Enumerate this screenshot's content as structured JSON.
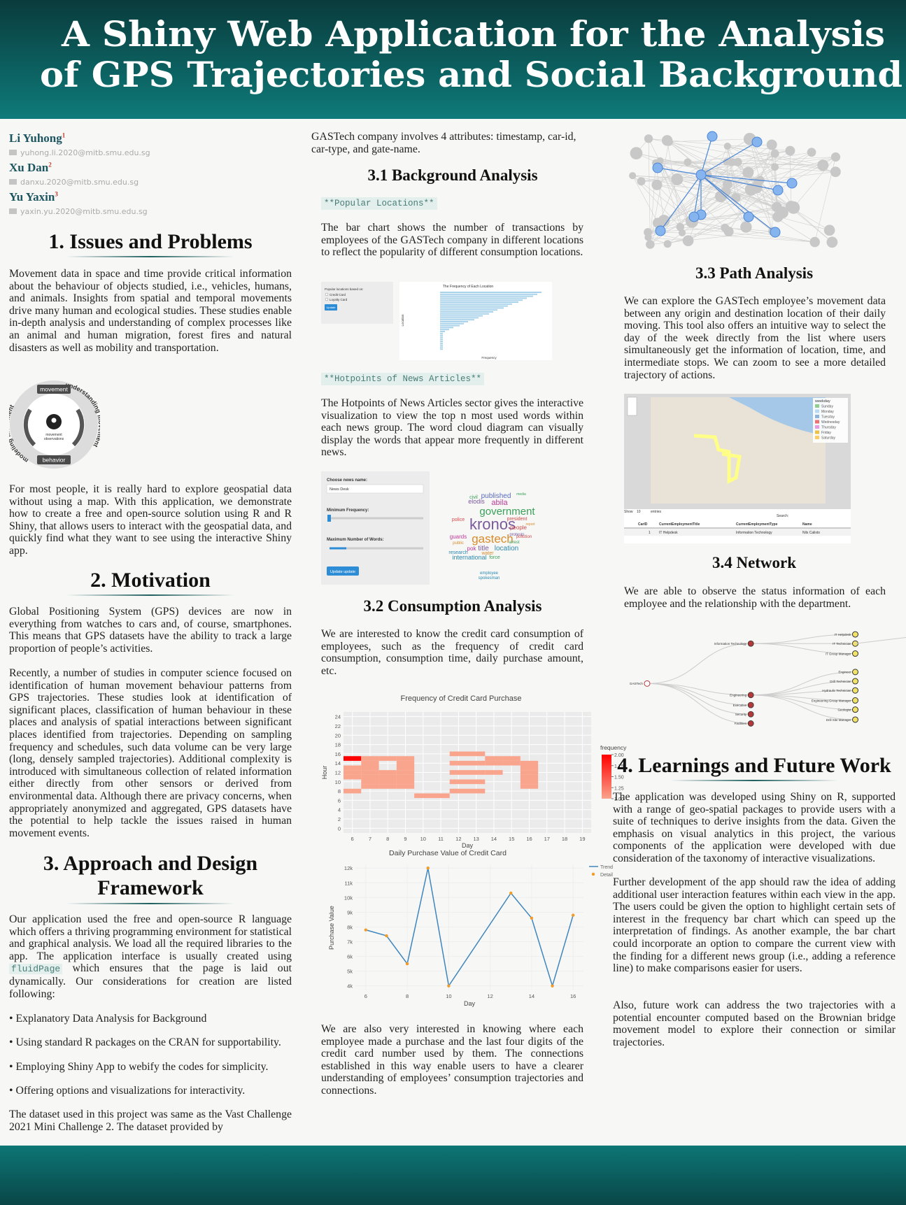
{
  "header": {
    "title_lines": [
      "A Shiny Web Application for the Analysis",
      "of GPS Trajectories and Social Background"
    ]
  },
  "authors": [
    {
      "name": "Li Yuhong",
      "affiliation": "1",
      "email": "yuhong.li.2020@mitb.smu.edu.sg"
    },
    {
      "name": "Xu Dan",
      "affiliation": "2",
      "email": "danxu.2020@mitb.smu.edu.sg"
    },
    {
      "name": "Yu Yaxin",
      "affiliation": "3",
      "email": "yaxin.yu.2020@mitb.smu.edu.sg"
    }
  ],
  "issues": {
    "heading": "1. Issues and Problems",
    "paragraphs": [
      "Movement data in space and time provide critical information about the behaviour of objects studied, i.e., vehicles, humans, and animals. Insights from spatial and temporal movements drive many human and ecological studies. These studies enable in-depth analysis and understanding of complex processes like an animal and human migration, forest fires and natural disasters as well as mobility and transportation.",
      "For most people, it is really hard to explore geospatial data without using a map. With this application, we demonstrate how to create a free and open-source solution using R and R Shiny, that allows users to interact with the geospatial data, and quickly find what they want to see using the interactive Shiny app."
    ]
  },
  "cycle_diagram": {
    "top": "movement",
    "bottom": "behavior",
    "right": "understanding movement",
    "left": "modeling movement",
    "center_lines": [
      "movement",
      "observations"
    ]
  },
  "motivation": {
    "heading": "2. Motivation",
    "paragraphs": [
      "Global Positioning System (GPS) devices are now in everything from watches to cars and, of course, smartphones. This means that GPS datasets have the ability to track a large proportion of people’s activities.",
      "Recently, a number of studies in computer science focused on identification of human movement behaviour patterns from GPS trajectories. These studies look at identification of significant places, classification of human behaviour in these places and analysis of spatial interactions between significant places identified from trajectories. Depending on sampling frequency and schedules, such data volume can be very large (long, densely sampled trajectories). Additional complexity is introduced with simultaneous collection of related information either directly from other sensors or derived from environmental data. Although there are privacy concerns, when appropriately anonymized and aggregated, GPS datasets have the potential to help tackle the issues raised in human movement events."
    ]
  },
  "approach": {
    "heading": "3. Approach and Design Framework",
    "intro": [
      "Our application used the free and open-source R language which offers a thriving programming environment for statistical and graphical analysis. We load all the required libraries to the app. The application interface is usually created using ",
      "fluidPage",
      " which ensures that the page is laid out dynamically. Our considerations for creation are listed following:"
    ],
    "bullets": [
      "• Explanatory Data Analysis for Background",
      "• Using standard R packages on the CRAN for supportability.",
      "• Employing Shiny App to webify the codes for simplicity.",
      "• Offering options and visualizations for interactivity."
    ],
    "dataset": "The dataset used in this project was same as the Vast Challenge 2021 Mini Challenge 2. The dataset provided by"
  },
  "continuation": "GASTech company involves 4 attributes: timestamp, car-id, car-type, and gate-name.",
  "background": {
    "heading": "3.1 Background Analysis",
    "popular_tag": "**Popular Locations**",
    "popular_text": "The bar chart shows the number of transactions by employees of the GASTech company in different locations to reflect the popularity of different consumption locations.",
    "popular_app": {
      "title": "The Frequency of Each Location",
      "control": "Popular locations based on:",
      "options": [
        "Credit Card",
        "Loyalty Card"
      ],
      "button": "Update",
      "y_label": "Location",
      "x_label": "Frequency"
    },
    "hotpoints_tag": "**Hotpoints of News Articles**",
    "hotpoints_text": "The Hotpoints of News Articles sector gives the interactive visualization to view the top n most used words within each news group. The word cloud diagram can visually display the words that appear more frequently in different news.",
    "news_app": {
      "choose": "Choose news name:",
      "selected": "News Desk",
      "min_freq": "Minimum Frequency:",
      "max_words": "Maximum Number of Words:",
      "button": "Update update",
      "words": [
        "kronos",
        "gastech",
        "government",
        "abila",
        "published",
        "people",
        "title",
        "location",
        "international",
        "president",
        "pok",
        "force",
        "police",
        "pollution",
        "arrest",
        "protests",
        "elodis",
        "civil",
        "water",
        "research",
        "employee",
        "spokesman",
        "guards",
        "public",
        "report",
        "media"
      ]
    }
  },
  "consumption": {
    "heading": "3.2 Consumption Analysis",
    "text1": "We are interested to know the credit card consumption of employees, such as the frequency of credit card consumption, consumption time, daily purchase amount, etc.",
    "text2": "We are also very interested in knowing where each employee made a purchase and the last four digits of the credit card number used by them. The connections established in this way enable users to have a clearer understanding of employees’ consumption trajectories and connections."
  },
  "path": {
    "heading": "3.3 Path Analysis",
    "text": "We can explore the GASTech employee’s movement data between any origin and destination location of their daily moving. This tool also offers an intuitive way to select the day of the week directly from the list where users simultaneously get the information of location, time, and intermediate stops. We can zoom to see a more detailed trajectory of actions.",
    "map_app": {
      "legend_title": "weekday",
      "weekdays": [
        "Sunday",
        "Monday",
        "Tuesday",
        "Wednesday",
        "Thursday",
        "Friday",
        "Saturday"
      ],
      "show": "Show",
      "entries_count": "10",
      "entries": "entries",
      "search": "Search:",
      "columns": [
        "CarID",
        "CurrentEmploymentTitle",
        "CurrentEmploymentType",
        "Name"
      ],
      "row": [
        "1",
        "IT Helpdesk",
        "Information Technology",
        "Nils Calixto"
      ]
    }
  },
  "network": {
    "heading": "3.4 Network",
    "text": "We are able to observe the status information of each employee and the relationship with the department.",
    "tree": {
      "root": "GASTech",
      "departments": [
        {
          "name": "Information Technology",
          "titles": [
            "IT Helpdesk",
            "IT Technician",
            "IT Group Manager"
          ]
        },
        {
          "name": "Engineering",
          "titles": [
            "Engineer",
            "Drill Technician",
            "Hydraulic Technician",
            "Engineering Group Manager",
            "Geologist",
            "Drill Site Manager"
          ]
        },
        {
          "name": "Executive",
          "titles": []
        },
        {
          "name": "Security",
          "titles": []
        },
        {
          "name": "Facilities",
          "titles": []
        }
      ]
    }
  },
  "learnings": {
    "heading": "4. Learnings and Future Work",
    "paragraphs": [
      "The application was developed using Shiny on R, supported with a range of geo-spatial packages to provide users with a suite of techniques to derive insights from the data. Given the emphasis on visual analytics in this project, the various components of the application were developed with due consideration of the taxonomy of interactive visualizations.",
      "Further development of the app should raw the idea of adding additional user interaction features within each view in the app. The users could be given the option to highlight certain sets of interest in the frequency bar chart which can speed up the interpretation of findings. As another example, the bar chart could incorporate an option to compare the current view with the finding for a different news group (i.e., adding a reference line) to make comparisons easier for users.",
      "Also, future work can address the two trajectories with a potential encounter computed based on the Brownian bridge movement model to explore their connection or similar trajectories."
    ]
  },
  "chart_data": [
    {
      "type": "heatmap",
      "title": "Frequency of Credit Card Purchase",
      "x_label": "Day",
      "y_label": "Hour",
      "xlim": [
        5.5,
        19.5
      ],
      "xticks": [
        6,
        7,
        8,
        9,
        10,
        11,
        12,
        13,
        14,
        15,
        16,
        17,
        18,
        19
      ],
      "ylim": [
        -1,
        25
      ],
      "yticks": [
        0,
        2,
        4,
        6,
        8,
        10,
        12,
        14,
        16,
        18,
        20,
        22,
        24
      ],
      "colorbar_title": "frequency",
      "clim": [
        1,
        2
      ],
      "low_color": "#f9a48c",
      "high_color": "#ff0000",
      "cticks": [
        {
          "value": 2,
          "label": "2.00"
        },
        {
          "value": 1.75,
          "label": "1.75"
        },
        {
          "value": 1.5,
          "label": "1.50"
        },
        {
          "value": 1.25,
          "label": "1.25"
        },
        {
          "value": 1,
          "label": "1.00"
        }
      ],
      "cells": [
        {
          "x": 12,
          "y": 16,
          "value": 1
        },
        {
          "x": 13,
          "y": 16,
          "value": 1
        },
        {
          "x": 6,
          "y": 15,
          "value": 2
        },
        {
          "x": 7,
          "y": 15,
          "value": 1
        },
        {
          "x": 8,
          "y": 15,
          "value": 1
        },
        {
          "x": 9,
          "y": 15,
          "value": 1
        },
        {
          "x": 14,
          "y": 15,
          "value": 1
        },
        {
          "x": 15,
          "y": 15,
          "value": 1
        },
        {
          "x": 7,
          "y": 14,
          "value": 1
        },
        {
          "x": 9,
          "y": 14,
          "value": 1
        },
        {
          "x": 12,
          "y": 14,
          "value": 1
        },
        {
          "x": 13,
          "y": 14,
          "value": 1
        },
        {
          "x": 14,
          "y": 14,
          "value": 1
        },
        {
          "x": 15,
          "y": 14,
          "value": 1
        },
        {
          "x": 16,
          "y": 14,
          "value": 1
        },
        {
          "x": 6,
          "y": 13,
          "value": 1
        },
        {
          "x": 7,
          "y": 13,
          "value": 1
        },
        {
          "x": 9,
          "y": 13,
          "value": 1
        },
        {
          "x": 16,
          "y": 13,
          "value": 1
        },
        {
          "x": 6,
          "y": 12,
          "value": 1
        },
        {
          "x": 7,
          "y": 12,
          "value": 1
        },
        {
          "x": 8,
          "y": 12,
          "value": 1
        },
        {
          "x": 9,
          "y": 12,
          "value": 1
        },
        {
          "x": 12,
          "y": 12,
          "value": 1
        },
        {
          "x": 13,
          "y": 12,
          "value": 1
        },
        {
          "x": 14,
          "y": 12,
          "value": 1
        },
        {
          "x": 16,
          "y": 12,
          "value": 1
        },
        {
          "x": 6,
          "y": 11,
          "value": 1
        },
        {
          "x": 7,
          "y": 11,
          "value": 1
        },
        {
          "x": 8,
          "y": 11,
          "value": 1
        },
        {
          "x": 9,
          "y": 11,
          "value": 1
        },
        {
          "x": 16,
          "y": 11,
          "value": 1
        },
        {
          "x": 7,
          "y": 10,
          "value": 1
        },
        {
          "x": 8,
          "y": 10,
          "value": 1
        },
        {
          "x": 9,
          "y": 10,
          "value": 1
        },
        {
          "x": 12,
          "y": 10,
          "value": 1
        },
        {
          "x": 13,
          "y": 10,
          "value": 1
        },
        {
          "x": 16,
          "y": 10,
          "value": 1
        },
        {
          "x": 7,
          "y": 9,
          "value": 1
        },
        {
          "x": 8,
          "y": 9,
          "value": 1
        },
        {
          "x": 9,
          "y": 9,
          "value": 1
        },
        {
          "x": 16,
          "y": 9,
          "value": 1
        },
        {
          "x": 6,
          "y": 8,
          "value": 1
        },
        {
          "x": 12,
          "y": 8,
          "value": 1
        },
        {
          "x": 13,
          "y": 8,
          "value": 1
        },
        {
          "x": 10,
          "y": 7,
          "value": 1
        },
        {
          "x": 11,
          "y": 7,
          "value": 1
        }
      ]
    },
    {
      "type": "line",
      "title": "Daily Purchase Value of Credit Card",
      "x_label": "Day",
      "y_label": "Purchase Value",
      "x": [
        6,
        7,
        8,
        9,
        10,
        13,
        14,
        15,
        16
      ],
      "xlim": [
        5.5,
        16.5
      ],
      "xticks": [
        6,
        8,
        10,
        12,
        14,
        16
      ],
      "ylim": [
        3700,
        12200
      ],
      "yticks": [
        {
          "value": 4000,
          "label": "4k"
        },
        {
          "value": 5000,
          "label": "5k"
        },
        {
          "value": 6000,
          "label": "6k"
        },
        {
          "value": 7000,
          "label": "7k"
        },
        {
          "value": 8000,
          "label": "8k"
        },
        {
          "value": 9000,
          "label": "9k"
        },
        {
          "value": 10000,
          "label": "10k"
        },
        {
          "value": 11000,
          "label": "11k"
        },
        {
          "value": 12000,
          "label": "12k"
        }
      ],
      "series": [
        {
          "name": "Trend",
          "color": "#3f86bd",
          "mode": "line",
          "values": [
            7800,
            7400,
            5500,
            12000,
            4000,
            10300,
            8600,
            4000,
            8800
          ]
        },
        {
          "name": "Detail",
          "color": "#f29b28",
          "mode": "markers",
          "values": [
            7800,
            7400,
            5500,
            12000,
            4000,
            10300,
            8600,
            4000,
            8800
          ]
        }
      ]
    }
  ]
}
